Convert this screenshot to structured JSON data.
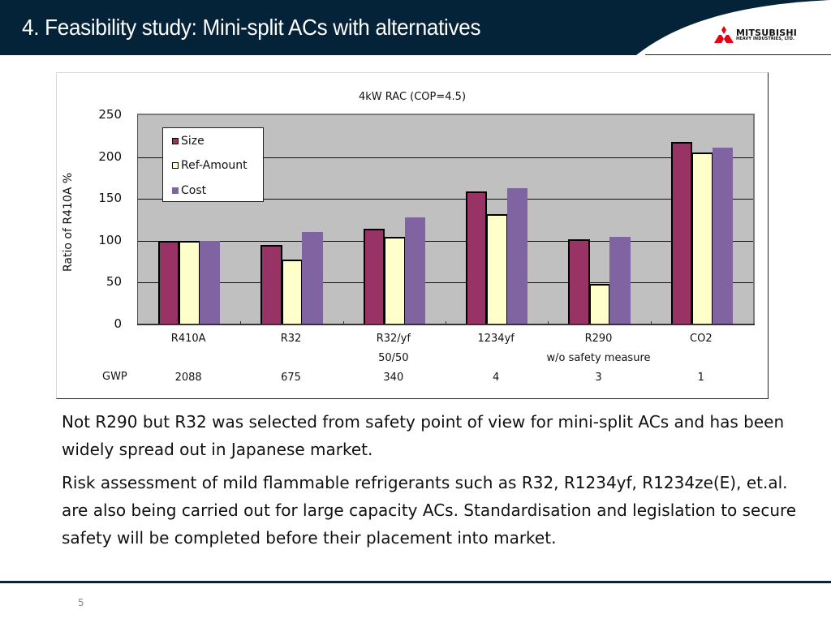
{
  "header": {
    "title": "4. Feasibility study: Mini-split ACs with alternatives",
    "logo_main": "MITSUBISHI",
    "logo_sub": "HEAVY INDUSTRIES, LTD.",
    "background_color": "#042238"
  },
  "chart_data": {
    "type": "bar",
    "title": "4kW RAC (COP=4.5)",
    "xlabel": "",
    "ylabel": "Ratio of R410A  %",
    "ylim": [
      0,
      250
    ],
    "yticks": [
      "0",
      "50",
      "100",
      "150",
      "200",
      "250"
    ],
    "grid": true,
    "legend_position": "upper-left inside plot",
    "categories": [
      "R410A",
      "R32",
      "R32/yf",
      "1234yf",
      "R290",
      "CO2"
    ],
    "category_sublabels": [
      "",
      "",
      "50/50",
      "",
      "w/o safety measure",
      ""
    ],
    "series": [
      {
        "name": "Size",
        "color": "#993366",
        "values": [
          100,
          95,
          114,
          159,
          102,
          218
        ]
      },
      {
        "name": "Ref-Amount",
        "color": "#ffffcc",
        "values": [
          100,
          78,
          105,
          132,
          48,
          205
        ]
      },
      {
        "name": "Cost",
        "color": "#8064a2",
        "values": [
          100,
          110,
          128,
          163,
          105,
          211
        ]
      }
    ],
    "gwp_label": "GWP",
    "gwp": [
      "2088",
      "675",
      "340",
      "4",
      "3",
      "1"
    ]
  },
  "body": {
    "paragraphs": [
      "Not R290 but R32 was selected from safety point of view for mini-split ACs and has been widely spread out in Japanese market.",
      "Risk assessment of mild flammable refrigerants such as R32, R1234yf, R1234ze(E), et.al. are also being carried out for large capacity ACs. Standardisation and legislation to secure safety will be completed before their placement into market."
    ]
  },
  "footer": {
    "page_number": "5"
  }
}
